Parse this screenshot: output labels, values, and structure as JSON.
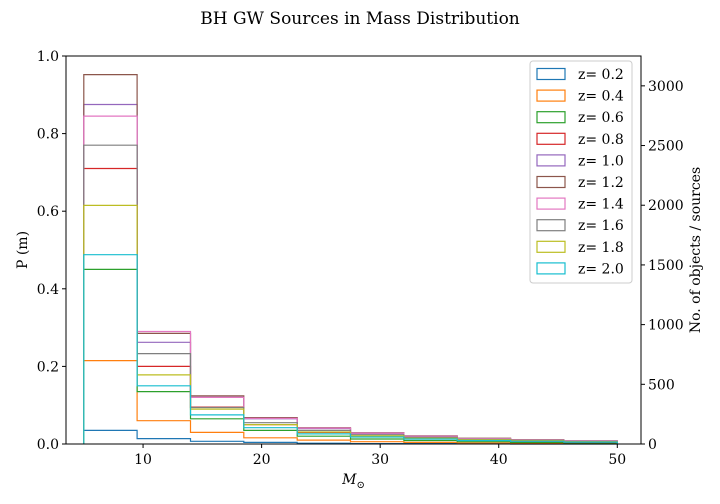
{
  "chart_data": {
    "type": "histogram-step",
    "title": "BH GW Sources in Mass Distribution",
    "xlabel": "$M_{\\odot}$",
    "ylabel_left": "P (m)",
    "ylabel_right": "No. of objects / sources",
    "xlim": [
      3.5,
      52
    ],
    "ylim_left": [
      0.0,
      1.0
    ],
    "ylim_right": [
      0,
      3250
    ],
    "xticks": [
      10,
      20,
      30,
      40,
      50
    ],
    "xtick_labels": [
      "10",
      "20",
      "30",
      "40",
      "50"
    ],
    "yticks_left": [
      0.0,
      0.2,
      0.4,
      0.6,
      0.8,
      1.0
    ],
    "ytick_labels_left": [
      "0.0",
      "0.2",
      "0.4",
      "0.6",
      "0.8",
      "1.0"
    ],
    "yticks_right": [
      0,
      500,
      1000,
      1500,
      2000,
      2500,
      3000
    ],
    "ytick_labels_right": [
      "0",
      "500",
      "1000",
      "1500",
      "2000",
      "2500",
      "3000"
    ],
    "bin_edges": [
      5.0,
      9.5,
      14.0,
      18.5,
      23.0,
      27.5,
      32.0,
      36.5,
      41.0,
      45.5,
      50.0
    ],
    "legend_position": "top-right",
    "grid": false,
    "series": [
      {
        "name": "z= 0.2",
        "color": "#1f77b4",
        "values": [
          0.035,
          0.014,
          0.007,
          0.004,
          0.002,
          0.001,
          0.001,
          0.001,
          0.0,
          0.0
        ]
      },
      {
        "name": "z= 0.4",
        "color": "#ff7f0e",
        "values": [
          0.215,
          0.06,
          0.03,
          0.016,
          0.01,
          0.006,
          0.004,
          0.003,
          0.002,
          0.001
        ]
      },
      {
        "name": "z= 0.6",
        "color": "#2ca02c",
        "values": [
          0.45,
          0.135,
          0.065,
          0.035,
          0.02,
          0.013,
          0.009,
          0.006,
          0.004,
          0.003
        ]
      },
      {
        "name": "z= 0.8",
        "color": "#d62728",
        "values": [
          0.71,
          0.2,
          0.095,
          0.05,
          0.03,
          0.02,
          0.014,
          0.01,
          0.007,
          0.005
        ]
      },
      {
        "name": "z= 1.0",
        "color": "#9467bd",
        "values": [
          0.875,
          0.262,
          0.12,
          0.065,
          0.04,
          0.027,
          0.019,
          0.013,
          0.009,
          0.007
        ]
      },
      {
        "name": "z= 1.2",
        "color": "#8c564b",
        "values": [
          0.952,
          0.285,
          0.124,
          0.068,
          0.042,
          0.029,
          0.021,
          0.015,
          0.011,
          0.008
        ]
      },
      {
        "name": "z= 1.4",
        "color": "#e377c2",
        "values": [
          0.845,
          0.29,
          0.12,
          0.066,
          0.041,
          0.028,
          0.02,
          0.014,
          0.01,
          0.008
        ]
      },
      {
        "name": "z= 1.6",
        "color": "#7f7f7f",
        "values": [
          0.77,
          0.233,
          0.094,
          0.055,
          0.035,
          0.024,
          0.017,
          0.012,
          0.009,
          0.007
        ]
      },
      {
        "name": "z= 1.8",
        "color": "#bcbd22",
        "values": [
          0.615,
          0.178,
          0.09,
          0.05,
          0.031,
          0.021,
          0.015,
          0.011,
          0.008,
          0.006
        ]
      },
      {
        "name": "z= 2.0",
        "color": "#17becf",
        "values": [
          0.488,
          0.15,
          0.075,
          0.042,
          0.026,
          0.018,
          0.013,
          0.009,
          0.007,
          0.005
        ]
      }
    ]
  }
}
